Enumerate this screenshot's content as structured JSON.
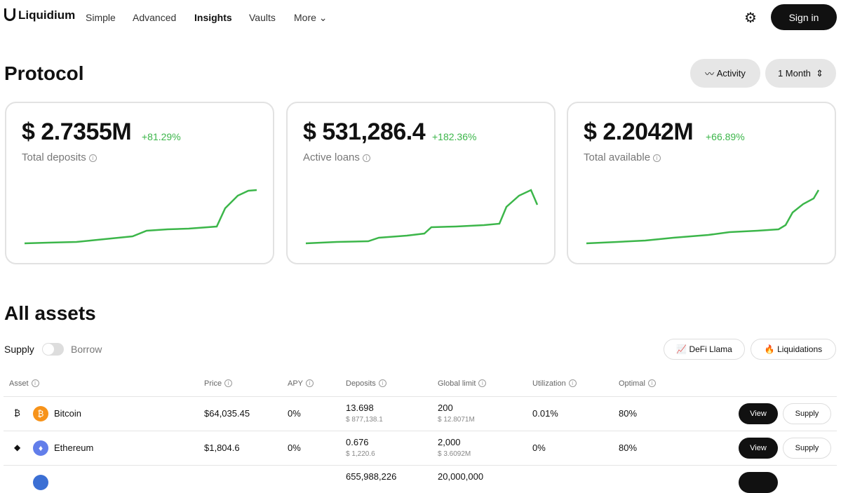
{
  "nav": {
    "brand": "Liquidium",
    "links": [
      "Simple",
      "Advanced",
      "Insights",
      "Vaults",
      "More"
    ],
    "sign_in": "Sign in"
  },
  "protocol": {
    "title": "Protocol",
    "activity": "Activity",
    "period": "1 Month",
    "cards": [
      {
        "value": "$ 2.7355M",
        "change": "+81.29%",
        "label": "Total deposits"
      },
      {
        "value": "$ 531,286.4",
        "change": "+182.36%",
        "label": "Active loans"
      },
      {
        "value": "$ 2.2042M",
        "change": "+66.89%",
        "label": "Total available"
      }
    ]
  },
  "assets": {
    "title": "All assets",
    "toggle": [
      "Supply",
      "Borrow"
    ],
    "buttons": [
      "DeFi Llama",
      "Liquidations"
    ],
    "table": {
      "headers": [
        "Asset",
        "Price",
        "APY",
        "Deposits",
        "Global limit",
        "Utilization",
        "Optimal"
      ],
      "rows": [
        {
          "asset": "Bitcoin",
          "price": "$64,035.45",
          "apy": "0%",
          "deposits": "13.698",
          "deposits_usd": "$ 877,138.1",
          "limit": "200",
          "limit_usd": "$ 12.8071M",
          "utilization": "0.01%",
          "optimal": "80%",
          "view": "View",
          "supply": "Supply"
        },
        {
          "asset": "Ethereum",
          "price": "$1,804.6",
          "apy": "0%",
          "deposits": "0.676",
          "deposits_usd": "$ 1,220.6",
          "limit": "2,000",
          "limit_usd": "$ 3.6092M",
          "utilization": "0%",
          "optimal": "80%",
          "view": "View",
          "supply": "Supply"
        },
        {
          "deposits": "655,988,226",
          "limit": "20,000,000"
        }
      ]
    }
  }
}
